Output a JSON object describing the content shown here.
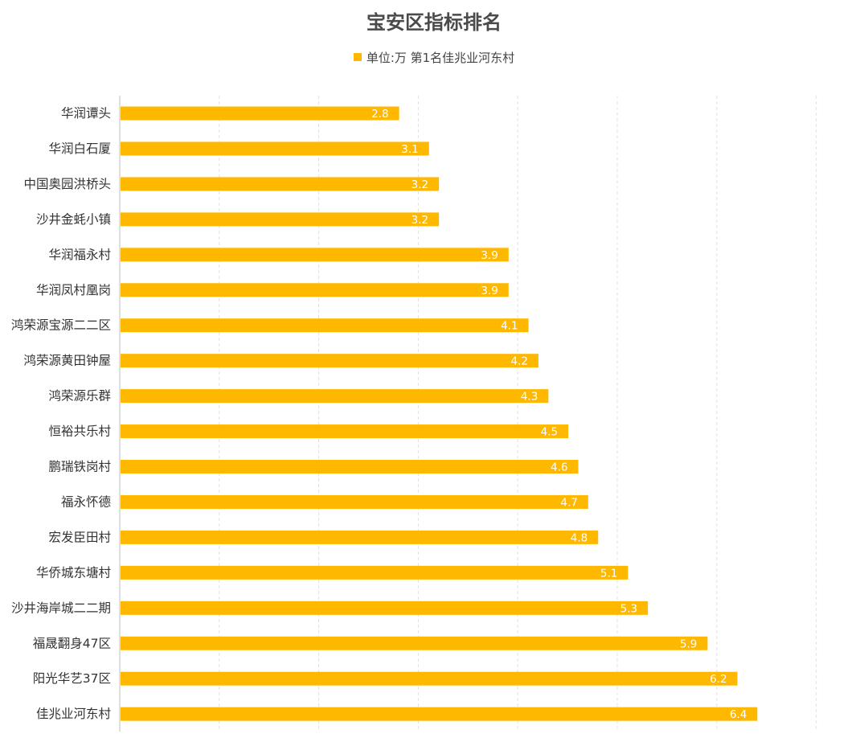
{
  "chart_data": {
    "type": "bar",
    "orientation": "horizontal",
    "title": "宝安区指标排名",
    "legend": "单位:万 第1名佳兆业河东村",
    "legend_position": "top",
    "color": "#FFB800",
    "grid": true,
    "xlim": [
      0,
      7
    ],
    "categories": [
      "华润谭头",
      "华润白石厦",
      "中国奥园洪桥头",
      "沙井金蚝小镇",
      "华润福永村",
      "华润凤村凰岗",
      "鸿荣源宝源二二区",
      "鸿荣源黄田钟屋",
      "鸿荣源乐群",
      "恒裕共乐村",
      "鹏瑞铁岗村",
      "福永怀德",
      "宏发臣田村",
      "华侨城东塘村",
      "沙井海岸城二二期",
      "福晟翻身47区",
      "阳光华艺37区",
      "佳兆业河东村"
    ],
    "values": [
      2.8,
      3.1,
      3.2,
      3.2,
      3.9,
      3.9,
      4.1,
      4.2,
      4.3,
      4.5,
      4.6,
      4.7,
      4.8,
      5.1,
      5.3,
      5.9,
      6.2,
      6.4
    ],
    "value_labels": [
      "2.8",
      "3.1",
      "3.2",
      "3.2",
      "3.9",
      "3.9",
      "4.1",
      "4.2",
      "4.3",
      "4.5",
      "4.6",
      "4.7",
      "4.8",
      "5.1",
      "5.3",
      "5.9",
      "6.2",
      "6.4"
    ]
  }
}
